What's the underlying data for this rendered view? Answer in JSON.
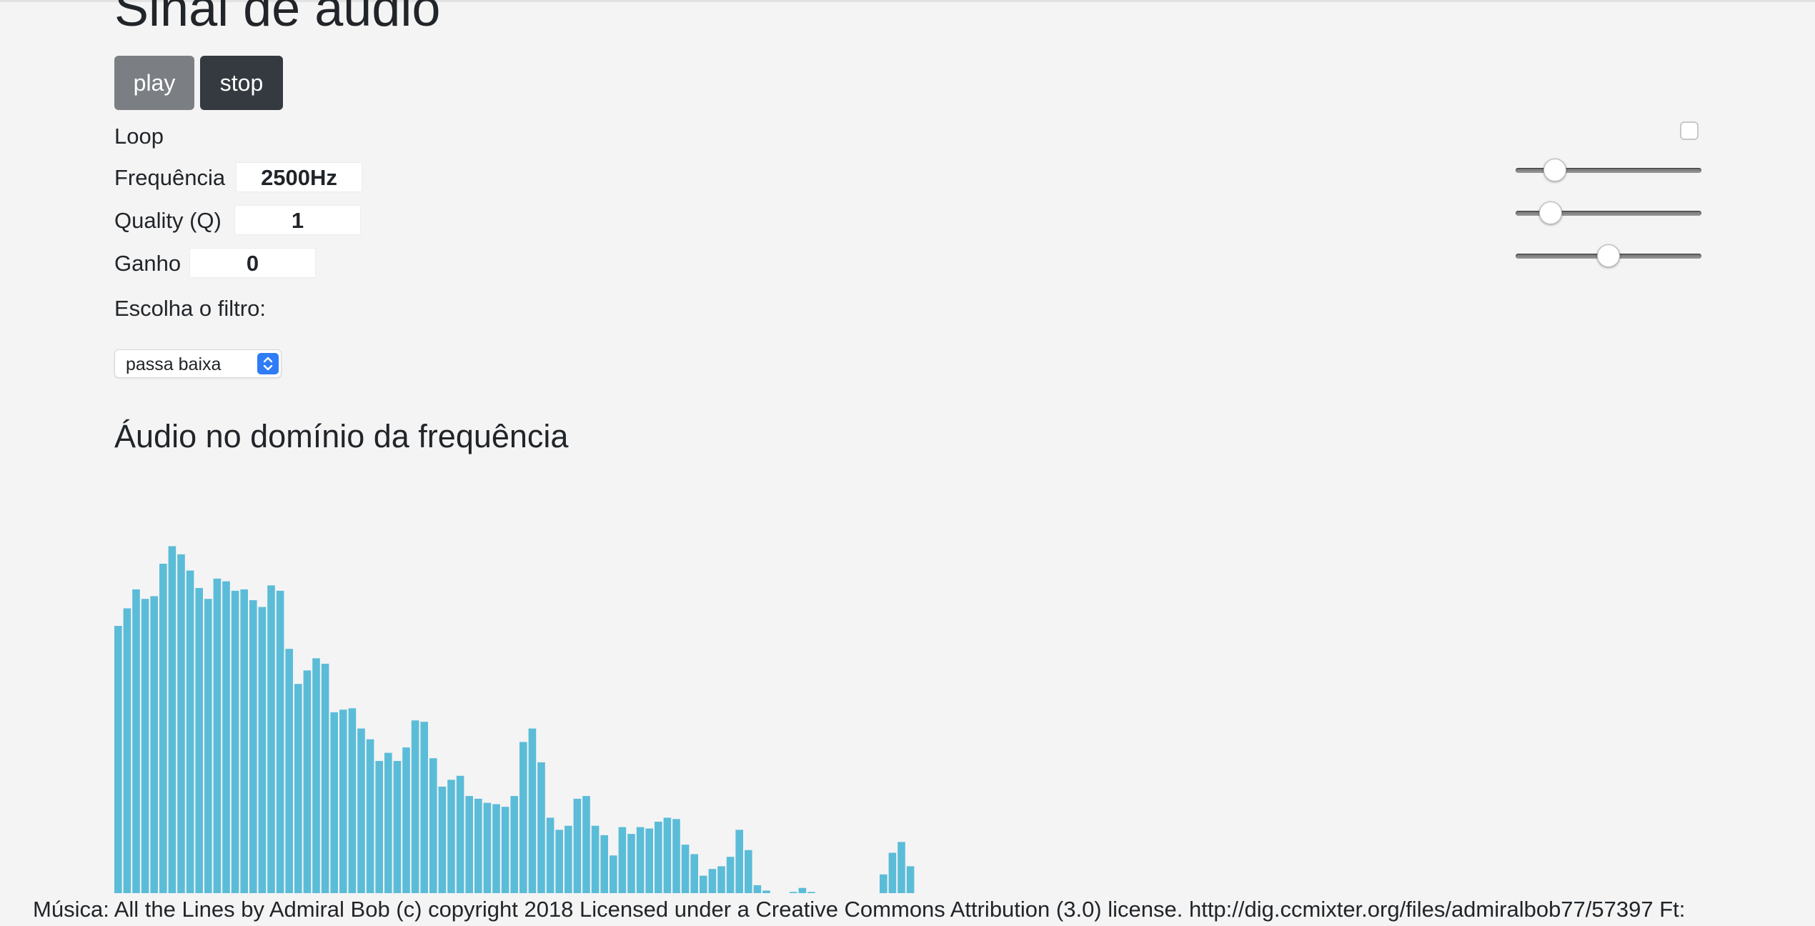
{
  "page": {
    "title": "Sinal de áudio",
    "section_title": "Áudio no domínio da frequência"
  },
  "controls": {
    "play_label": "play",
    "stop_label": "stop",
    "loop_label": "Loop",
    "loop_checked": false,
    "frequency_label": "Frequência",
    "frequency_value": "2500Hz",
    "frequency_slider_fraction": 0.17,
    "quality_label": "Quality (Q)",
    "quality_value": "1",
    "quality_slider_fraction": 0.145,
    "gain_label": "Ganho",
    "gain_value": "0",
    "gain_slider_fraction": 0.5,
    "filter_label": "Escolha o filtro:",
    "filter_selected": "passa baixa"
  },
  "colors": {
    "bar": "#5bbcd8",
    "play_button": "#7b7f83",
    "stop_button": "#343a40",
    "select_accent": "#2f7cf6"
  },
  "icons": {
    "select_arrow": "chevron-updown-icon"
  },
  "chart_data": {
    "type": "bar",
    "ylim": [
      0,
      255
    ],
    "values": [
      200,
      213,
      227,
      220,
      222,
      246,
      259,
      253,
      241,
      228,
      220,
      235,
      233,
      226,
      227,
      219,
      214,
      230,
      226,
      183,
      157,
      167,
      176,
      172,
      136,
      138,
      139,
      124,
      116,
      100,
      106,
      100,
      110,
      130,
      129,
      102,
      81,
      86,
      89,
      74,
      72,
      69,
      68,
      66,
      74,
      114,
      124,
      99,
      58,
      49,
      52,
      72,
      74,
      52,
      45,
      30,
      51,
      46,
      51,
      50,
      55,
      58,
      57,
      38,
      31,
      15,
      20,
      22,
      29,
      49,
      34,
      8,
      4,
      0,
      0,
      3,
      6,
      3,
      0,
      0,
      2,
      0,
      0,
      1,
      1,
      16,
      32,
      40,
      22,
      1
    ]
  },
  "footer": {
    "text": "Música: All the Lines by Admiral Bob (c) copyright 2018 Licensed under a Creative Commons Attribution (3.0) license. http://dig.ccmixter.org/files/admiralbob77/57397 Ft:"
  }
}
